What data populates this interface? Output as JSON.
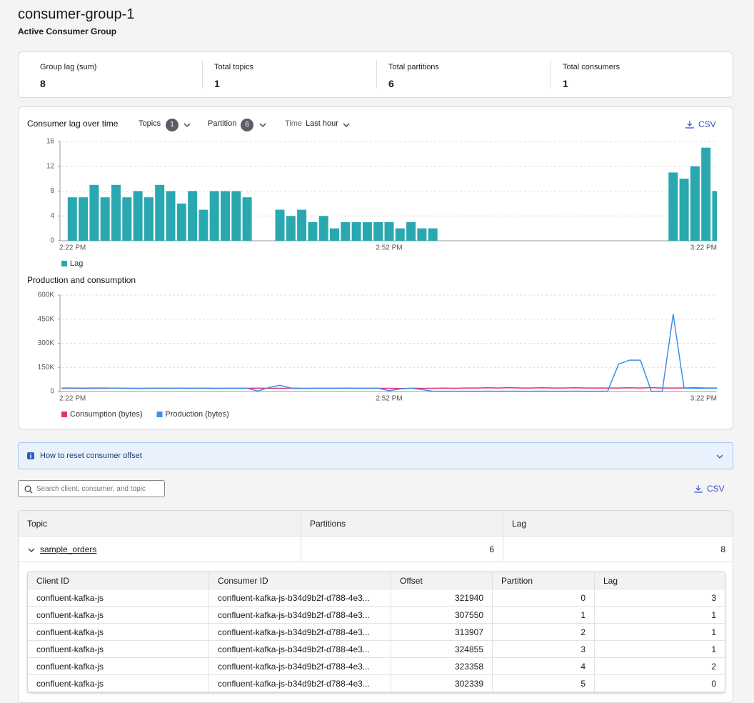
{
  "header": {
    "title": "consumer-group-1",
    "subtitle": "Active Consumer Group"
  },
  "stats": [
    {
      "label": "Group lag (sum)",
      "value": 8
    },
    {
      "label": "Total topics",
      "value": 1
    },
    {
      "label": "Total partitions",
      "value": 6
    },
    {
      "label": "Total consumers",
      "value": 1
    }
  ],
  "controls": {
    "topics_label": "Topics",
    "topics_count": 1,
    "partition_label": "Partition",
    "partition_count": 6,
    "time_label": "Time",
    "time_value": "Last hour",
    "csv": "CSV"
  },
  "chart_data": [
    {
      "type": "bar",
      "title": "Consumer lag over time",
      "categories": [
        "2:22 PM",
        null,
        null,
        null,
        null,
        null,
        null,
        null,
        null,
        null,
        null,
        null,
        null,
        null,
        null,
        null,
        null,
        null,
        null,
        null,
        null,
        null,
        null,
        null,
        null,
        null,
        null,
        null,
        null,
        null,
        "2:52 PM",
        null,
        null,
        null,
        null,
        null,
        null,
        null,
        null,
        null,
        null,
        null,
        null,
        null,
        null,
        null,
        null,
        null,
        null,
        null,
        null,
        null,
        null,
        null,
        null,
        null,
        null,
        null,
        null,
        null,
        "3:22 PM"
      ],
      "series": [
        {
          "name": "Lag",
          "color": "#2aa8b0",
          "values": [
            null,
            7,
            7,
            9,
            7,
            9,
            7,
            8,
            7,
            9,
            8,
            6,
            8,
            5,
            8,
            8,
            8,
            7,
            null,
            null,
            5,
            4,
            5,
            3,
            4,
            2,
            3,
            3,
            3,
            3,
            3,
            2,
            3,
            2,
            2,
            null,
            null,
            null,
            null,
            null,
            null,
            null,
            null,
            null,
            null,
            null,
            null,
            null,
            null,
            null,
            null,
            null,
            null,
            null,
            null,
            null,
            11,
            10,
            12,
            15,
            8
          ]
        }
      ],
      "ylim": [
        0,
        16
      ],
      "yticks": [
        0,
        4,
        8,
        12,
        16
      ],
      "grid": true
    },
    {
      "type": "line",
      "title": "Production and consumption",
      "categories": [
        "2:22 PM",
        null,
        null,
        null,
        null,
        null,
        null,
        null,
        null,
        null,
        null,
        null,
        null,
        null,
        null,
        null,
        null,
        null,
        null,
        null,
        null,
        null,
        null,
        null,
        null,
        null,
        null,
        null,
        null,
        null,
        "2:52 PM",
        null,
        null,
        null,
        null,
        null,
        null,
        null,
        null,
        null,
        null,
        null,
        null,
        null,
        null,
        null,
        null,
        null,
        null,
        null,
        null,
        null,
        null,
        null,
        null,
        null,
        null,
        null,
        null,
        null,
        "3:22 PM"
      ],
      "series": [
        {
          "name": "Consumption (bytes)",
          "color": "#e0317a",
          "values": [
            20000,
            20000,
            19000,
            20000,
            20000,
            21000,
            20000,
            19000,
            20000,
            20000,
            20000,
            21000,
            20000,
            20000,
            19000,
            20000,
            20000,
            20000,
            21000,
            20000,
            20000,
            20000,
            19000,
            20000,
            20000,
            20000,
            21000,
            20000,
            20000,
            20000,
            20000,
            19000,
            20000,
            20000,
            20000,
            21000,
            20000,
            22000,
            22000,
            23000,
            22000,
            24000,
            22000,
            22000,
            23000,
            22000,
            22000,
            23000,
            22000,
            22000,
            22000,
            22000,
            23000,
            22000,
            24000,
            22000,
            22000,
            22000,
            23000,
            22000,
            22000
          ]
        },
        {
          "name": "Production (bytes)",
          "color": "#3d8fe8",
          "values": [
            22000,
            22000,
            21000,
            22000,
            22000,
            21000,
            20000,
            20000,
            20000,
            21000,
            20000,
            20000,
            20000,
            21000,
            20000,
            20000,
            20000,
            20000,
            3000,
            25000,
            38000,
            22000,
            20000,
            20000,
            20000,
            20000,
            20000,
            20000,
            20000,
            20000,
            5000,
            16000,
            20000,
            12000,
            2000,
            2000,
            2000,
            2000,
            2000,
            2000,
            2000,
            2000,
            2000,
            2000,
            2000,
            2000,
            2000,
            2000,
            2000,
            2000,
            2000,
            170000,
            195000,
            195000,
            2000,
            2000,
            480000,
            20000,
            20000,
            20000,
            20000
          ]
        }
      ],
      "ylim": [
        0,
        600000
      ],
      "yticks": [
        0,
        {
          "value": 150000,
          "label": "150K"
        },
        {
          "value": 300000,
          "label": "300K"
        },
        {
          "value": 450000,
          "label": "450K"
        },
        {
          "value": 600000,
          "label": "600K"
        }
      ],
      "grid": true
    }
  ],
  "banner": {
    "text": "How to reset consumer offset"
  },
  "search": {
    "placeholder": "Search client, consumer, and topic"
  },
  "table_csv": "CSV",
  "table": {
    "headers": [
      "Topic",
      "Partitions",
      "Lag"
    ],
    "rows": [
      [
        "sample_orders",
        6,
        8
      ]
    ]
  },
  "inner_table": {
    "headers": [
      "Client ID",
      "Consumer ID",
      "Offset",
      "Partition",
      "Lag"
    ],
    "rows": [
      [
        "confluent-kafka-js",
        "confluent-kafka-js-b34d9b2f-d788-4e3...",
        321940,
        0,
        3
      ],
      [
        "confluent-kafka-js",
        "confluent-kafka-js-b34d9b2f-d788-4e3...",
        307550,
        1,
        1
      ],
      [
        "confluent-kafka-js",
        "confluent-kafka-js-b34d9b2f-d788-4e3...",
        313907,
        2,
        1
      ],
      [
        "confluent-kafka-js",
        "confluent-kafka-js-b34d9b2f-d788-4e3...",
        324855,
        3,
        1
      ],
      [
        "confluent-kafka-js",
        "confluent-kafka-js-b34d9b2f-d788-4e3...",
        323358,
        4,
        2
      ],
      [
        "confluent-kafka-js",
        "confluent-kafka-js-b34d9b2f-d788-4e3...",
        302339,
        5,
        0
      ]
    ]
  }
}
